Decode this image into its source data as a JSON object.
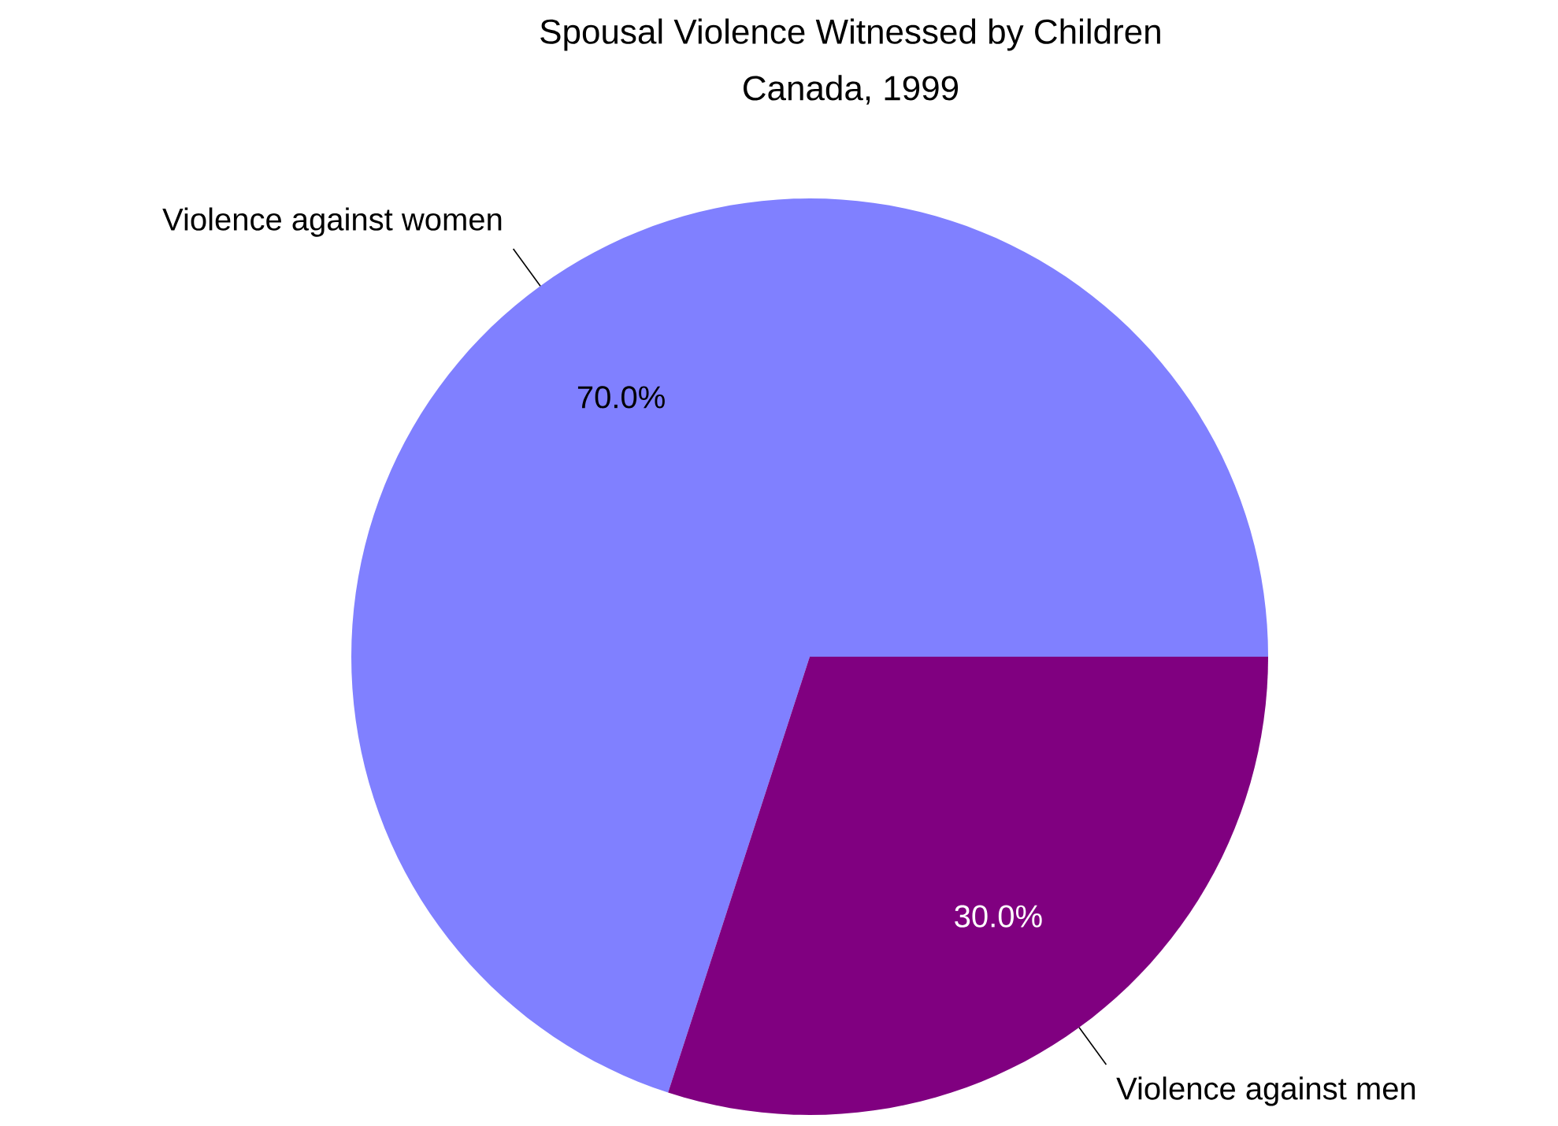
{
  "chart_data": {
    "type": "pie",
    "title": "Spousal Violence Witnessed by Children",
    "subtitle": "Canada, 1999",
    "categories": [
      "Violence against women",
      "Violence against men"
    ],
    "values": [
      70,
      30
    ],
    "colors": [
      "#8080ff",
      "#800080"
    ],
    "value_labels": [
      "70.0%",
      "30.0%"
    ]
  }
}
